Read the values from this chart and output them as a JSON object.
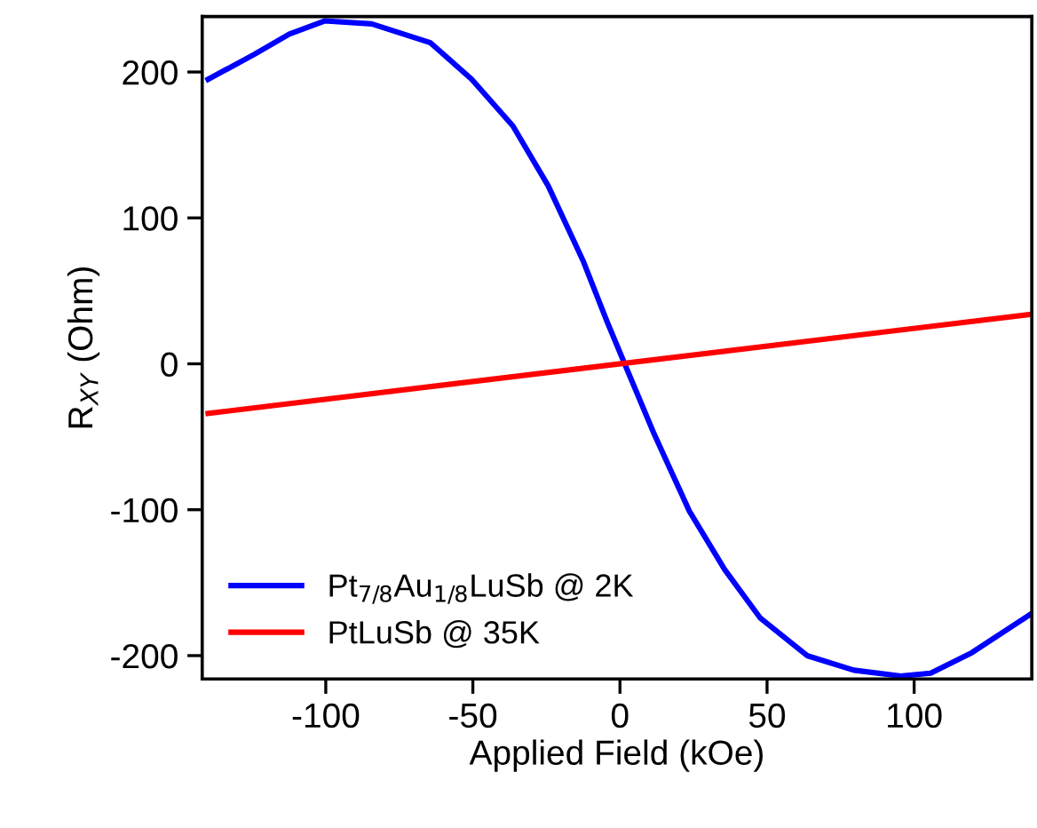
{
  "chart_data": {
    "type": "line",
    "xlabel": "Applied Field (kOe)",
    "ylabel": "R$_{XY}$ (Ohm)",
    "xlim": [
      -142,
      140
    ],
    "ylim": [
      -216,
      238
    ],
    "xticks": [
      -100,
      -50,
      0,
      50,
      100
    ],
    "yticks": [
      -200,
      -100,
      0,
      100,
      200
    ],
    "grid": false,
    "legend": "bottom left",
    "marker": "none",
    "line_style": "solid",
    "series": [
      {
        "name": "Pt$_{7/8}$Au$_{1/8}$LuSb @ 2K",
        "color": "#0000ff",
        "x": [
          -140,
          -124.4,
          -112.4,
          -100.4,
          -84.4,
          -64.4,
          -50.4,
          -36.4,
          -24.4,
          -12.4,
          -4.4,
          1.6,
          11.6,
          23.6,
          35.6,
          47.6,
          63.6,
          79.5,
          95.6,
          105.6,
          119.6,
          140
        ],
        "values": [
          195,
          212,
          226,
          235,
          233,
          220,
          195,
          163,
          122,
          70,
          29,
          0,
          -48,
          -101,
          -141,
          -174,
          -200,
          -210,
          -214,
          -212,
          -198,
          -171
        ]
      },
      {
        "name": "PtLuSb @ 35K",
        "color": "#ff0000",
        "x": [
          -140,
          140
        ],
        "values": [
          -34,
          34
        ]
      }
    ]
  }
}
